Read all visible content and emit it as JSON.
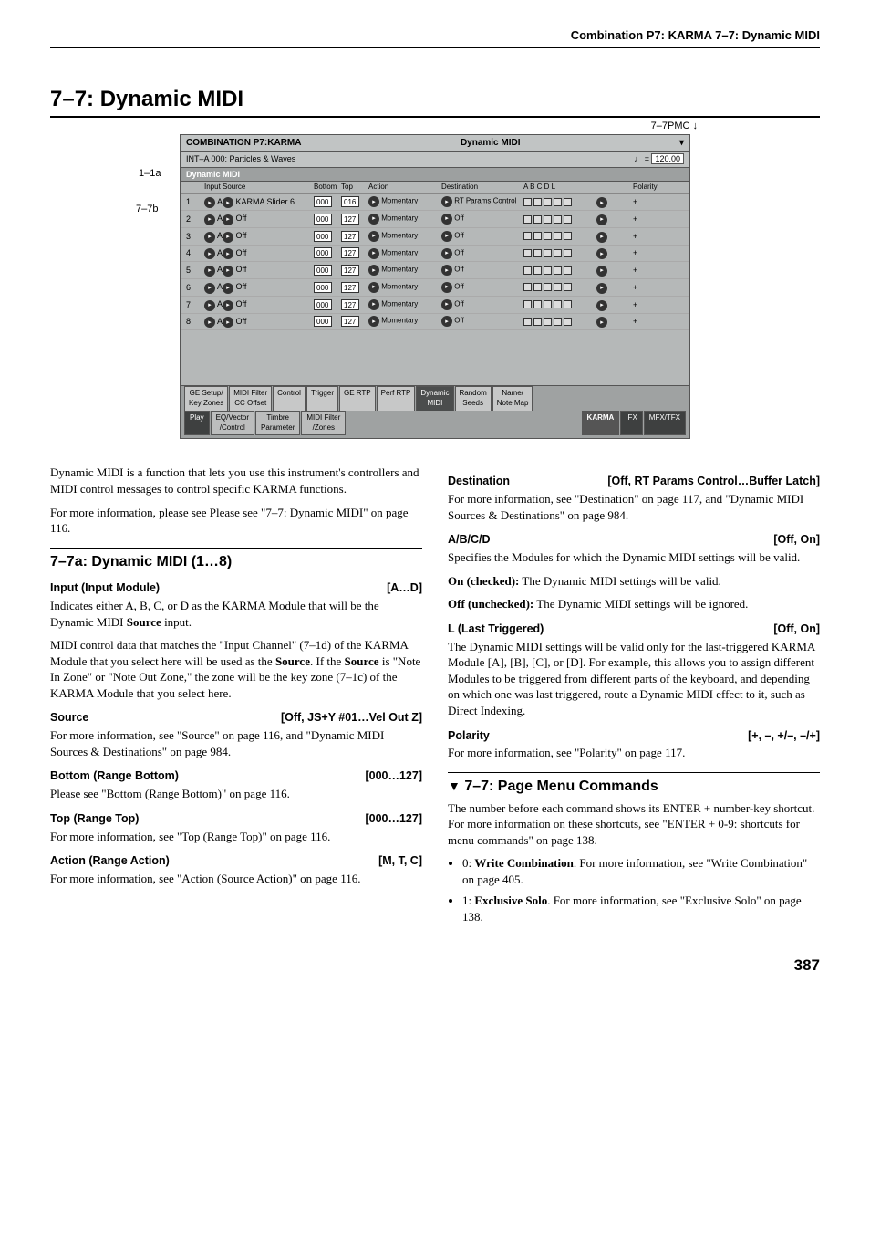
{
  "header": "Combination P7: KARMA    7–7: Dynamic MIDI",
  "title": "7–7: Dynamic MIDI",
  "callouts": {
    "topRight": "7–7PMC",
    "left1": "1–1a",
    "left2": "7–7b"
  },
  "screenshot": {
    "titleLeft": "COMBINATION P7:KARMA",
    "titleRight": "Dynamic MIDI",
    "subLeft": "INT–A   000: Particles & Waves",
    "tempoLabel": "♩ =",
    "tempo": "120.00",
    "tabHeader": "Dynamic MIDI",
    "cols": [
      "",
      "Input",
      "Source",
      "Bottom",
      "Top",
      "Action",
      "Destination",
      "A  B  C  D   L",
      "",
      "Polarity"
    ],
    "rows": [
      {
        "n": "1",
        "inp": "A",
        "src": "KARMA Slider 6",
        "bot": "000",
        "top": "016",
        "act": "Momentary",
        "dest": "RT Params Control",
        "pol": "+"
      },
      {
        "n": "2",
        "inp": "A",
        "src": "Off",
        "bot": "000",
        "top": "127",
        "act": "Momentary",
        "dest": "Off",
        "pol": "+"
      },
      {
        "n": "3",
        "inp": "A",
        "src": "Off",
        "bot": "000",
        "top": "127",
        "act": "Momentary",
        "dest": "Off",
        "pol": "+"
      },
      {
        "n": "4",
        "inp": "A",
        "src": "Off",
        "bot": "000",
        "top": "127",
        "act": "Momentary",
        "dest": "Off",
        "pol": "+"
      },
      {
        "n": "5",
        "inp": "A",
        "src": "Off",
        "bot": "000",
        "top": "127",
        "act": "Momentary",
        "dest": "Off",
        "pol": "+"
      },
      {
        "n": "6",
        "inp": "A",
        "src": "Off",
        "bot": "000",
        "top": "127",
        "act": "Momentary",
        "dest": "Off",
        "pol": "+"
      },
      {
        "n": "7",
        "inp": "A",
        "src": "Off",
        "bot": "000",
        "top": "127",
        "act": "Momentary",
        "dest": "Off",
        "pol": "+"
      },
      {
        "n": "8",
        "inp": "A",
        "src": "Off",
        "bot": "000",
        "top": "127",
        "act": "Momentary",
        "dest": "Off",
        "pol": "+"
      }
    ],
    "upperTabs": [
      "GE Setup/\nKey Zones",
      "MIDI Filter\nCC Offset",
      "Control",
      "Trigger",
      "GE RTP",
      "Perf RTP",
      "Dynamic\nMIDI",
      "Random\nSeeds",
      "Name/\nNote Map"
    ],
    "lowerTabs": [
      "Play",
      "EQ/Vector\n/Control",
      "Timbre\nParameter",
      "MIDI Filter\n/Zones",
      "",
      "KARMA",
      "IFX",
      "MFX/TFX"
    ]
  },
  "left": {
    "intro1": "Dynamic MIDI is a function that lets you use this instrument's controllers and MIDI control messages to control specific KARMA functions.",
    "intro2": "For more information, please see Please see \"7–7: Dynamic MIDI\" on page 116.",
    "h2": "7–7a: Dynamic MIDI (1…8)",
    "p1": {
      "name": "Input (Input Module)",
      "range": "[A…D]"
    },
    "p1t1": "Indicates either A, B, C, or D as the KARMA Module that will be the Dynamic MIDI Source input.",
    "p1t2": "MIDI control data that matches the \"Input Channel\" (7–1d) of the KARMA Module that you select here will be used as the Source. If the Source is \"Note In Zone\" or \"Note Out Zone,\" the zone will be the key zone (7–1c) of the KARMA Module that you select here.",
    "p2": {
      "name": "Source",
      "range": "[Off, JS+Y #01…Vel Out Z]"
    },
    "p2t": "For more information, see \"Source\" on page 116, and \"Dynamic MIDI Sources & Destinations\" on page 984.",
    "p3": {
      "name": "Bottom (Range Bottom)",
      "range": "[000…127]"
    },
    "p3t": "Please see \"Bottom (Range Bottom)\" on page 116.",
    "p4": {
      "name": "Top (Range Top)",
      "range": "[000…127]"
    },
    "p4t": "For more information, see \"Top (Range Top)\" on page 116.",
    "p5": {
      "name": "Action (Range Action)",
      "range": "[M, T, C]"
    },
    "p5t": "For more information, see \"Action (Source Action)\" on page 116."
  },
  "right": {
    "p1": {
      "name": "Destination",
      "range": "[Off, RT Params Control…Buffer Latch]"
    },
    "p1t": "For more information, see \"Destination\" on page 117, and \"Dynamic MIDI Sources & Destinations\" on page 984.",
    "p2": {
      "name": "A/B/C/D",
      "range": "[Off, On]"
    },
    "p2t1": "Specifies the Modules for which the Dynamic MIDI settings will be valid.",
    "p2t2": "On (checked): The Dynamic MIDI settings will be valid.",
    "p2t3": "Off (unchecked): The Dynamic MIDI settings will be ignored.",
    "p3": {
      "name": "L (Last Triggered)",
      "range": "[Off, On]"
    },
    "p3t": "The Dynamic MIDI settings will be valid only for the last-triggered KARMA Module [A], [B], [C], or [D]. For example, this allows you to assign different Modules to be triggered from different parts of the keyboard, and depending on which one was last triggered, route a Dynamic MIDI effect to it, such as Direct Indexing.",
    "p4": {
      "name": "Polarity",
      "range": "[+, –, +/–, –/+]"
    },
    "p4t": "For more information, see \"Polarity\" on page 117.",
    "h2": "7–7: Page Menu Commands",
    "cmdIntro": "The number before each command shows its ENTER + number-key shortcut. For more information on these shortcuts, see \"ENTER + 0-9: shortcuts for menu commands\" on page 138.",
    "b1": "0: Write Combination. For more information, see \"Write Combination\" on page 405.",
    "b2": "1: Exclusive Solo. For more information, see \"Exclusive Solo\" on page 138."
  },
  "pageNum": "387"
}
